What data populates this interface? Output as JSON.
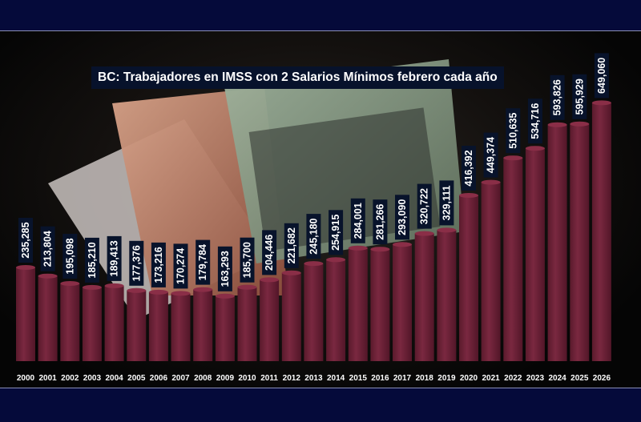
{
  "chart_data": {
    "type": "bar",
    "title": "BC: Trabajadores en IMSS con 2 Salarios Mínimos febrero cada año",
    "categories": [
      "2000",
      "2001",
      "2002",
      "2003",
      "2004",
      "2005",
      "2006",
      "2007",
      "2008",
      "2009",
      "2010",
      "2011",
      "2012",
      "2013",
      "2014",
      "2015",
      "2016",
      "2017",
      "2018",
      "2019",
      "2020",
      "2021",
      "2022",
      "2023",
      "2024",
      "2025",
      "2026"
    ],
    "values": [
      235285,
      213804,
      195098,
      185210,
      189413,
      177376,
      173216,
      170274,
      179784,
      163293,
      185700,
      204446,
      221682,
      245180,
      254915,
      284001,
      281266,
      293090,
      320722,
      329111,
      416392,
      449374,
      510635,
      534716,
      593826,
      595929,
      649060
    ],
    "labels": [
      "235,285",
      "213,804",
      "195,098",
      "185,210",
      "189,413",
      "177,376",
      "173,216",
      "170,274",
      "179,784",
      "163,293",
      "185,700",
      "204,446",
      "221,682",
      "245,180",
      "254,915",
      "284,001",
      "281,266",
      "293,090",
      "320,722",
      "329,111",
      "416,392",
      "449,374",
      "510,635",
      "534,716",
      "593,826",
      "595,929",
      "649,060"
    ],
    "ylim": [
      0,
      680000
    ],
    "xlabel": "",
    "ylabel": "",
    "grid": false,
    "colors": {
      "bar": "#6b1f34",
      "bar_top": "#8a2e47",
      "label_box": "#08132b",
      "label_text": "#ffffff",
      "tick_text": "#ffffff"
    }
  }
}
